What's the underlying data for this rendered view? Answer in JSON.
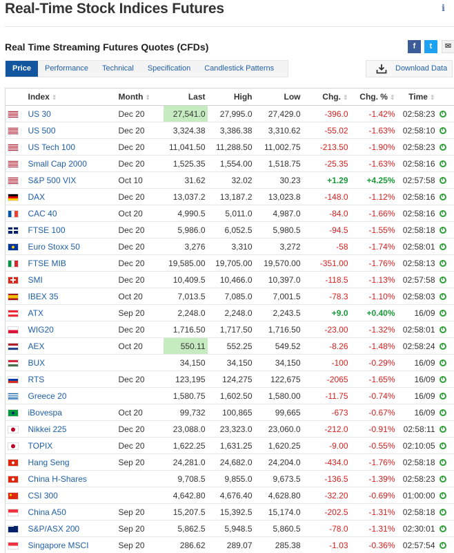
{
  "page": {
    "title": "Real-Time Stock Indices Futures",
    "info_icon": "i",
    "subtitle": "Real Time Streaming Futures Quotes (CFDs)"
  },
  "social": {
    "facebook": "f",
    "twitter": "t",
    "email": "✉"
  },
  "tabs": [
    {
      "label": "Price",
      "active": true
    },
    {
      "label": "Performance"
    },
    {
      "label": "Technical"
    },
    {
      "label": "Specification"
    },
    {
      "label": "Candlestick Patterns"
    }
  ],
  "download_label": "Download Data",
  "columns": [
    "Index",
    "Month",
    "Last",
    "High",
    "Low",
    "Chg.",
    "Chg. %",
    "Time"
  ],
  "rows": [
    {
      "name": "US 30",
      "flag": "us",
      "month": "Dec 20",
      "last": "27,541.0",
      "high": "27,995.0",
      "low": "27,429.0",
      "chg": "-396.0",
      "chgp": "-1.42%",
      "time": "02:58:23",
      "dir": "neg",
      "hl": true
    },
    {
      "name": "US 500",
      "flag": "us",
      "month": "Dec 20",
      "last": "3,324.38",
      "high": "3,386.38",
      "low": "3,310.62",
      "chg": "-55.02",
      "chgp": "-1.63%",
      "time": "02:58:10",
      "dir": "neg"
    },
    {
      "name": "US Tech 100",
      "flag": "us",
      "month": "Dec 20",
      "last": "11,041.50",
      "high": "11,288.50",
      "low": "11,002.75",
      "chg": "-213.50",
      "chgp": "-1.90%",
      "time": "02:58:23",
      "dir": "neg"
    },
    {
      "name": "Small Cap 2000",
      "flag": "us",
      "month": "Dec 20",
      "last": "1,525.35",
      "high": "1,554.00",
      "low": "1,518.75",
      "chg": "-25.35",
      "chgp": "-1.63%",
      "time": "02:58:16",
      "dir": "neg"
    },
    {
      "name": "S&P 500 VIX",
      "flag": "us",
      "month": "Oct 10",
      "last": "31.62",
      "high": "32.02",
      "low": "30.23",
      "chg": "+1.29",
      "chgp": "+4.25%",
      "time": "02:57:58",
      "dir": "pos"
    },
    {
      "name": "DAX",
      "flag": "de",
      "month": "Dec 20",
      "last": "13,037.2",
      "high": "13,187.2",
      "low": "13,023.8",
      "chg": "-148.0",
      "chgp": "-1.12%",
      "time": "02:58:16",
      "dir": "neg"
    },
    {
      "name": "CAC 40",
      "flag": "fr",
      "month": "Oct 20",
      "last": "4,990.5",
      "high": "5,011.0",
      "low": "4,987.0",
      "chg": "-84.0",
      "chgp": "-1.66%",
      "time": "02:58:16",
      "dir": "neg"
    },
    {
      "name": "FTSE 100",
      "flag": "gb",
      "month": "Dec 20",
      "last": "5,986.0",
      "high": "6,052.5",
      "low": "5,980.5",
      "chg": "-94.5",
      "chgp": "-1.55%",
      "time": "02:58:18",
      "dir": "neg"
    },
    {
      "name": "Euro Stoxx 50",
      "flag": "eu",
      "month": "Dec 20",
      "last": "3,276",
      "high": "3,310",
      "low": "3,272",
      "chg": "-58",
      "chgp": "-1.74%",
      "time": "02:58:01",
      "dir": "neg"
    },
    {
      "name": "FTSE MIB",
      "flag": "it",
      "month": "Dec 20",
      "last": "19,585.00",
      "high": "19,705.00",
      "low": "19,570.00",
      "chg": "-351.00",
      "chgp": "-1.76%",
      "time": "02:58:13",
      "dir": "neg"
    },
    {
      "name": "SMI",
      "flag": "ch",
      "month": "Dec 20",
      "last": "10,409.5",
      "high": "10,466.0",
      "low": "10,397.0",
      "chg": "-118.5",
      "chgp": "-1.13%",
      "time": "02:57:58",
      "dir": "neg"
    },
    {
      "name": "IBEX 35",
      "flag": "es",
      "month": "Oct 20",
      "last": "7,013.5",
      "high": "7,085.0",
      "low": "7,001.5",
      "chg": "-78.3",
      "chgp": "-1.10%",
      "time": "02:58:03",
      "dir": "neg"
    },
    {
      "name": "ATX",
      "flag": "at",
      "month": "Sep 20",
      "last": "2,248.0",
      "high": "2,248.0",
      "low": "2,243.5",
      "chg": "+9.0",
      "chgp": "+0.40%",
      "time": "16/09",
      "dir": "pos"
    },
    {
      "name": "WIG20",
      "flag": "pl",
      "month": "Dec 20",
      "last": "1,716.50",
      "high": "1,717.50",
      "low": "1,716.50",
      "chg": "-23.00",
      "chgp": "-1.32%",
      "time": "02:58:01",
      "dir": "neg"
    },
    {
      "name": "AEX",
      "flag": "nl",
      "month": "Oct 20",
      "last": "550.11",
      "high": "552.25",
      "low": "549.52",
      "chg": "-8.26",
      "chgp": "-1.48%",
      "time": "02:58:24",
      "dir": "neg",
      "hl": true
    },
    {
      "name": "BUX",
      "flag": "hu",
      "month": "",
      "last": "34,150",
      "high": "34,150",
      "low": "34,150",
      "chg": "-100",
      "chgp": "-0.29%",
      "time": "16/09",
      "dir": "neg"
    },
    {
      "name": "RTS",
      "flag": "ru",
      "month": "Dec 20",
      "last": "123,195",
      "high": "124,275",
      "low": "122,675",
      "chg": "-2065",
      "chgp": "-1.65%",
      "time": "16/09",
      "dir": "neg"
    },
    {
      "name": "Greece 20",
      "flag": "gr",
      "month": "",
      "last": "1,580.75",
      "high": "1,602.50",
      "low": "1,580.00",
      "chg": "-11.75",
      "chgp": "-0.74%",
      "time": "16/09",
      "dir": "neg"
    },
    {
      "name": "iBovespa",
      "flag": "br",
      "month": "Oct 20",
      "last": "99,732",
      "high": "100,865",
      "low": "99,665",
      "chg": "-673",
      "chgp": "-0.67%",
      "time": "16/09",
      "dir": "neg"
    },
    {
      "name": "Nikkei 225",
      "flag": "jp",
      "month": "Dec 20",
      "last": "23,088.0",
      "high": "23,323.0",
      "low": "23,060.0",
      "chg": "-212.0",
      "chgp": "-0.91%",
      "time": "02:58:11",
      "dir": "neg"
    },
    {
      "name": "TOPIX",
      "flag": "jp",
      "month": "Dec 20",
      "last": "1,622.25",
      "high": "1,631.25",
      "low": "1,620.25",
      "chg": "-9.00",
      "chgp": "-0.55%",
      "time": "02:10:05",
      "dir": "neg"
    },
    {
      "name": "Hang Seng",
      "flag": "hk",
      "month": "Sep 20",
      "last": "24,281.0",
      "high": "24,682.0",
      "low": "24,204.0",
      "chg": "-434.0",
      "chgp": "-1.76%",
      "time": "02:58:18",
      "dir": "neg"
    },
    {
      "name": "China H-Shares",
      "flag": "hk",
      "month": "",
      "last": "9,708.5",
      "high": "9,855.0",
      "low": "9,673.5",
      "chg": "-136.5",
      "chgp": "-1.39%",
      "time": "02:58:23",
      "dir": "neg"
    },
    {
      "name": "CSI 300",
      "flag": "cn",
      "month": "",
      "last": "4,642.80",
      "high": "4,676.40",
      "low": "4,628.80",
      "chg": "-32.20",
      "chgp": "-0.69%",
      "time": "01:00:00",
      "dir": "neg"
    },
    {
      "name": "China A50",
      "flag": "sg",
      "month": "Sep 20",
      "last": "15,207.5",
      "high": "15,392.5",
      "low": "15,174.0",
      "chg": "-202.5",
      "chgp": "-1.31%",
      "time": "02:58:18",
      "dir": "neg"
    },
    {
      "name": "S&P/ASX 200",
      "flag": "au",
      "month": "Sep 20",
      "last": "5,862.5",
      "high": "5,948.5",
      "low": "5,860.5",
      "chg": "-78.0",
      "chgp": "-1.31%",
      "time": "02:30:01",
      "dir": "neg"
    },
    {
      "name": "Singapore MSCI",
      "flag": "sg",
      "month": "Sep 20",
      "last": "286.62",
      "high": "289.07",
      "low": "285.38",
      "chg": "-1.03",
      "chgp": "-0.36%",
      "time": "02:57:54",
      "dir": "neg"
    }
  ]
}
